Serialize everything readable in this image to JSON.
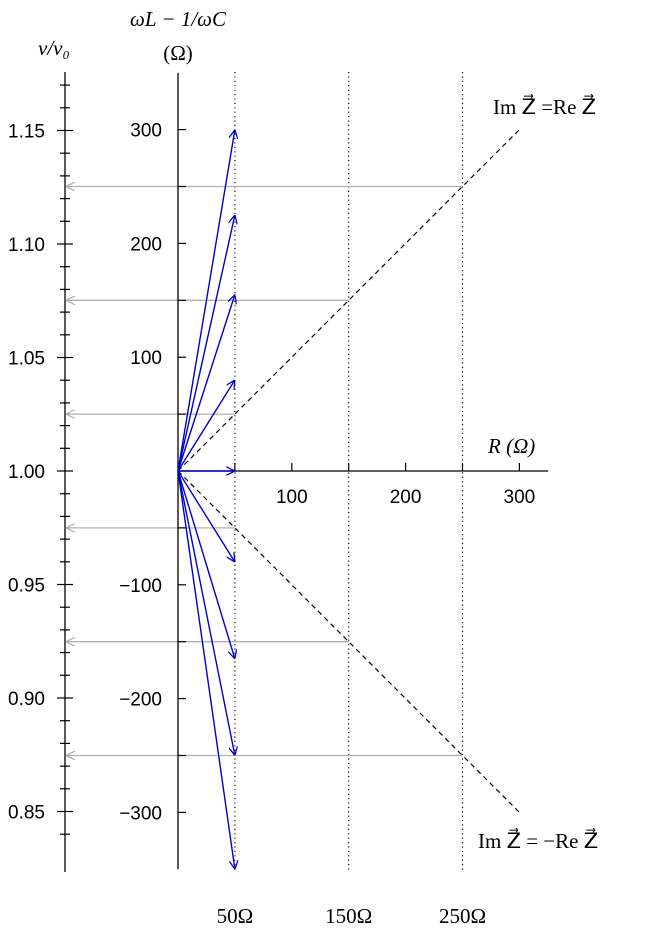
{
  "chart_data": {
    "type": "diagram",
    "frequency_axis": {
      "label": "ν/ν₀",
      "ticks": [
        1.15,
        1.1,
        1.05,
        1.0,
        0.95,
        0.9,
        0.85
      ],
      "tick_labels": [
        "1.15",
        "1.10",
        "1.05",
        "1.00",
        "0.95",
        "0.90",
        "0.85"
      ],
      "range": [
        0.838,
        1.18
      ]
    },
    "reactance_axis": {
      "label_top": "ωL − 1/ωC",
      "label_unit": "(Ω)",
      "ticks": [
        300,
        200,
        100,
        -100,
        -200,
        -300
      ],
      "tick_labels": [
        "300",
        "200",
        "100",
        "−100",
        "−200",
        "−300"
      ],
      "range": [
        -350,
        350
      ]
    },
    "resistance_axis": {
      "label": "R  (Ω)",
      "ticks": [
        100,
        200,
        300
      ],
      "tick_labels": [
        "100",
        "200",
        "300"
      ],
      "range": [
        0,
        320
      ]
    },
    "vertical_guides": {
      "values": [
        50,
        150,
        250
      ],
      "labels": [
        "50Ω",
        "150Ω",
        "250Ω"
      ]
    },
    "phasors": {
      "R": 50,
      "X": [
        300,
        225,
        155,
        80,
        0,
        -80,
        -165,
        -250,
        -350
      ]
    },
    "gray_projections": [
      250,
      150,
      50,
      -50,
      -150,
      -250
    ],
    "diagonals": {
      "upper_label": "Im Z⃗ =Re Z⃗",
      "lower_label": "Im Z⃗ = −Re Z⃗",
      "extent_R": 300
    },
    "colors": {
      "phasor": "#0000cc",
      "gray": "#b0b0b0",
      "axis": "#000000"
    }
  }
}
